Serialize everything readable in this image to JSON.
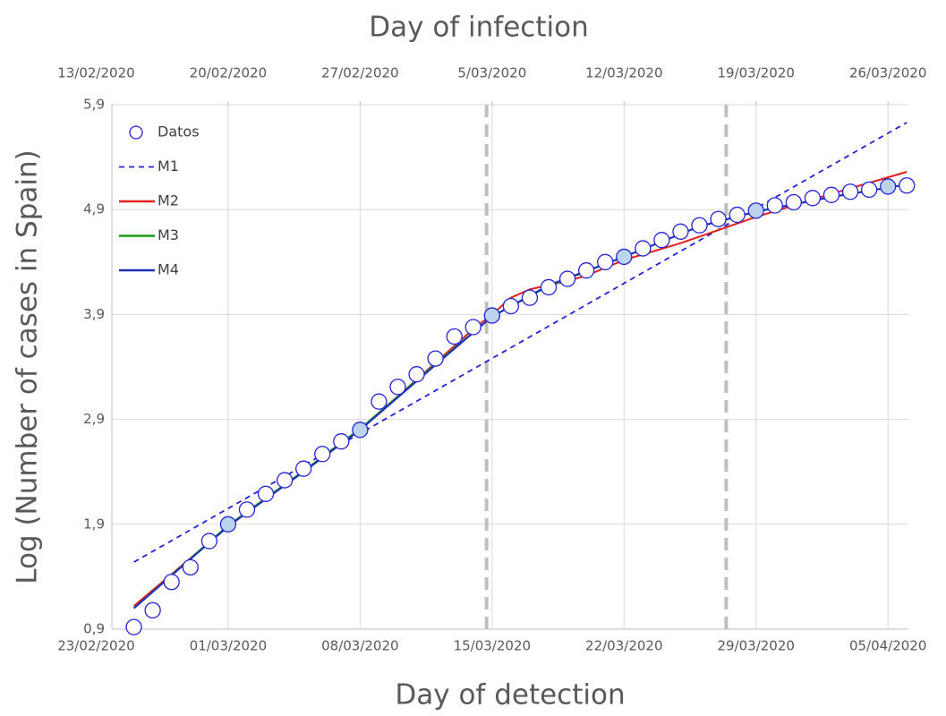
{
  "chart_data": {
    "type": "line",
    "title": "Day of infection",
    "xlabel": "Day of detection",
    "ylabel": "Log (Number of cases in Spain)",
    "xlim": [
      "2020-02-23T20:00",
      "2020-04-06T02:00"
    ],
    "xticks": [
      {
        "value": "2020-02-23",
        "label": "23/02/2020"
      },
      {
        "value": "2020-03-01",
        "label": "01/03/2020"
      },
      {
        "value": "2020-03-08",
        "label": "08/03/2020"
      },
      {
        "value": "2020-03-15",
        "label": "15/03/2020"
      },
      {
        "value": "2020-03-22",
        "label": "22/03/2020"
      },
      {
        "value": "2020-03-29",
        "label": "29/03/2020"
      },
      {
        "value": "2020-04-05",
        "label": "05/04/2020"
      }
    ],
    "x2lim": [
      "2020-02-13T20:00",
      "2020-03-27T02:00"
    ],
    "x2ticks": [
      {
        "value": "2020-02-13",
        "label": "13/02/2020"
      },
      {
        "value": "2020-02-20",
        "label": "20/02/2020"
      },
      {
        "value": "2020-02-27",
        "label": "27/02/2020"
      },
      {
        "value": "2020-03-05",
        "label": "5/03/2020"
      },
      {
        "value": "2020-03-12",
        "label": "12/03/2020"
      },
      {
        "value": "2020-03-19",
        "label": "19/03/2020"
      },
      {
        "value": "2020-03-26",
        "label": "26/03/2020"
      }
    ],
    "ylim": [
      0.9,
      5.9
    ],
    "yticks": [
      {
        "value": 0.9,
        "label": "0,9"
      },
      {
        "value": 1.9,
        "label": "1,9"
      },
      {
        "value": 2.9,
        "label": "2,9"
      },
      {
        "value": 3.9,
        "label": "3,9"
      },
      {
        "value": 4.9,
        "label": "4,9"
      },
      {
        "value": 5.9,
        "label": "5,9"
      }
    ],
    "grid": true,
    "legend": "upper left",
    "vlines": [
      "2020-03-14T17:00",
      "2020-03-27T10:00"
    ],
    "series": [
      {
        "name": "Datos",
        "color": "#2323d6",
        "marker": "circle",
        "x": [
          "2020-02-25",
          "2020-02-26",
          "2020-02-27",
          "2020-02-28",
          "2020-02-29",
          "2020-03-01",
          "2020-03-02",
          "2020-03-03",
          "2020-03-04",
          "2020-03-05",
          "2020-03-06",
          "2020-03-07",
          "2020-03-08",
          "2020-03-09",
          "2020-03-10",
          "2020-03-11",
          "2020-03-12",
          "2020-03-13",
          "2020-03-14",
          "2020-03-15",
          "2020-03-16",
          "2020-03-17",
          "2020-03-18",
          "2020-03-19",
          "2020-03-20",
          "2020-03-21",
          "2020-03-22",
          "2020-03-23",
          "2020-03-24",
          "2020-03-25",
          "2020-03-26",
          "2020-03-27",
          "2020-03-28",
          "2020-03-29",
          "2020-03-30",
          "2020-03-31",
          "2020-04-01",
          "2020-04-02",
          "2020-04-03",
          "2020-04-04",
          "2020-04-05",
          "2020-04-06"
        ],
        "values": [
          0.92,
          1.08,
          1.35,
          1.49,
          1.74,
          1.9,
          2.04,
          2.19,
          2.32,
          2.43,
          2.57,
          2.69,
          2.8,
          3.07,
          3.21,
          3.33,
          3.48,
          3.69,
          3.78,
          3.89,
          3.98,
          4.06,
          4.16,
          4.24,
          4.32,
          4.4,
          4.45,
          4.53,
          4.61,
          4.69,
          4.75,
          4.81,
          4.85,
          4.89,
          4.94,
          4.97,
          5.01,
          5.04,
          5.07,
          5.09,
          5.12,
          5.13
        ]
      },
      {
        "name": "M1",
        "color": "#2323d6",
        "dashed": true,
        "x": [
          "2020-02-25",
          "2020-04-06"
        ],
        "values": [
          1.54,
          5.73
        ]
      },
      {
        "name": "M2",
        "color": "#e61e1e",
        "x": [
          "2020-02-25",
          "2020-03-01",
          "2020-03-08",
          "2020-03-14",
          "2020-03-15",
          "2020-03-16",
          "2020-03-17",
          "2020-03-18",
          "2020-03-19",
          "2020-03-20",
          "2020-03-22",
          "2020-03-25",
          "2020-03-29",
          "2020-04-02",
          "2020-04-06"
        ],
        "values": [
          1.12,
          1.88,
          2.8,
          3.76,
          3.9,
          4.06,
          4.14,
          4.18,
          4.22,
          4.27,
          4.42,
          4.58,
          4.83,
          5.05,
          5.26
        ]
      },
      {
        "name": "M3",
        "color": "#1a9a1a",
        "x": [
          "2020-02-25",
          "2020-03-01",
          "2020-03-05",
          "2020-03-08",
          "2020-03-12",
          "2020-03-15",
          "2020-03-18",
          "2020-03-22",
          "2020-03-26",
          "2020-03-29",
          "2020-04-02",
          "2020-04-06"
        ],
        "values": [
          1.1,
          1.89,
          2.41,
          2.81,
          3.43,
          3.88,
          4.17,
          4.45,
          4.74,
          4.88,
          5.02,
          5.14
        ]
      },
      {
        "name": "M4",
        "color": "#1f2fb8",
        "x": [
          "2020-02-25",
          "2020-03-01",
          "2020-03-05",
          "2020-03-08",
          "2020-03-12",
          "2020-03-15",
          "2020-03-18",
          "2020-03-22",
          "2020-03-26",
          "2020-03-29",
          "2020-04-02",
          "2020-04-06"
        ],
        "values": [
          1.1,
          1.88,
          2.4,
          2.8,
          3.42,
          3.88,
          4.18,
          4.45,
          4.74,
          4.88,
          5.02,
          5.14
        ]
      }
    ]
  }
}
